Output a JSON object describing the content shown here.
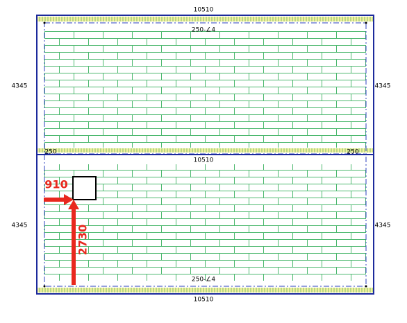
{
  "panels": [
    {
      "top_dim": "10510",
      "left_dim": "4345",
      "right_dim": "4345",
      "note": "250-∠4",
      "corner_left": "250",
      "corner_right": "250"
    },
    {
      "top_dim": "10510",
      "left_dim": "4345",
      "right_dim": "4345",
      "note": "250-∠4",
      "bottom_dim": "10510"
    }
  ],
  "markers": {
    "horizontal": "910",
    "vertical": "2730"
  }
}
